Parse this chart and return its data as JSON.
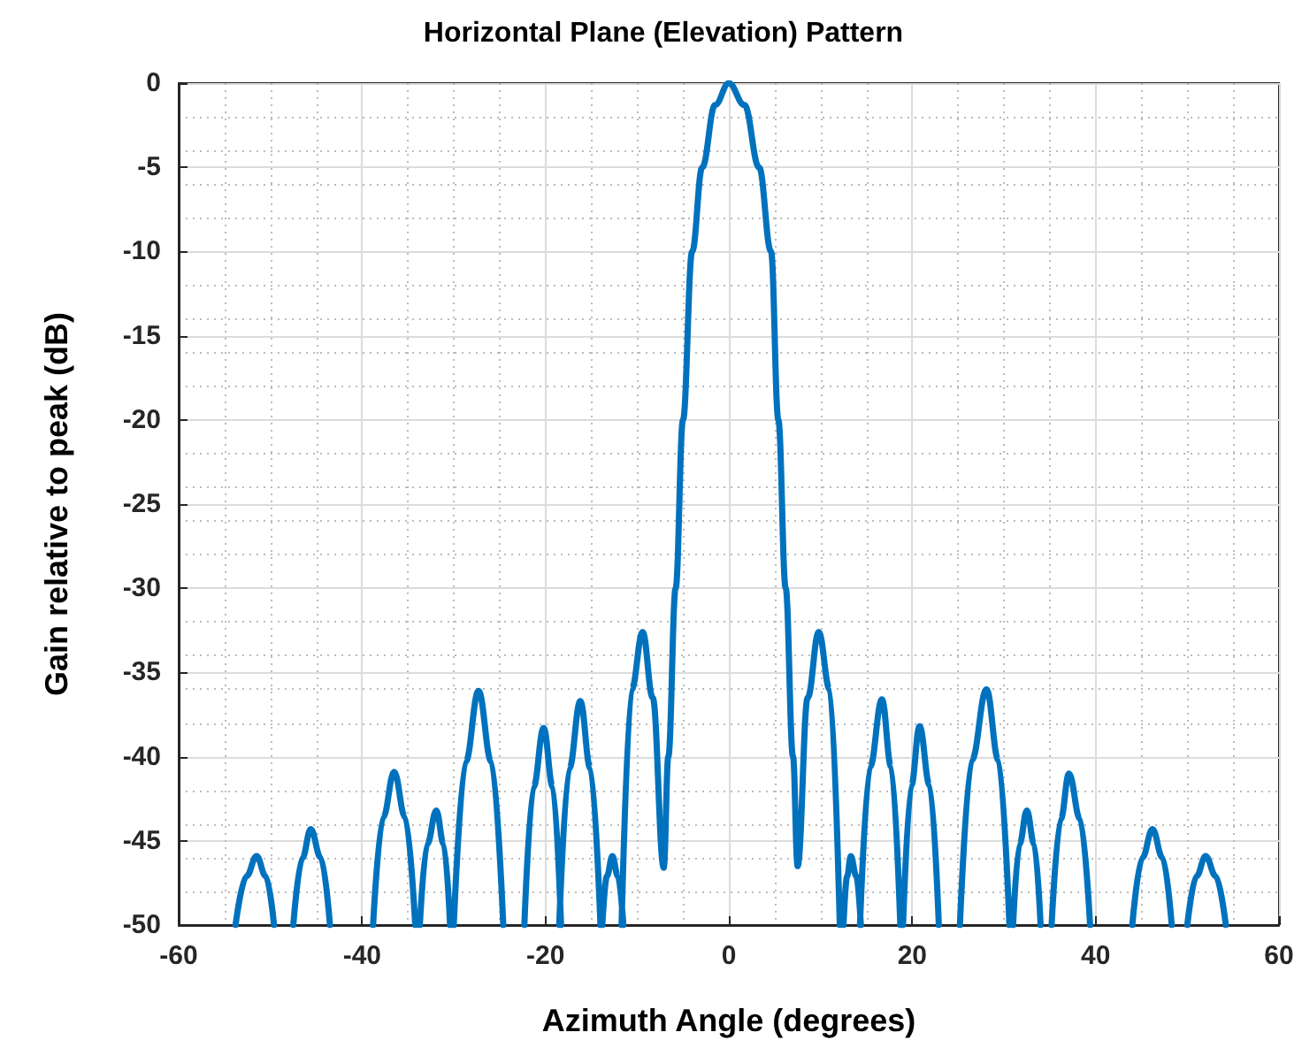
{
  "chart_data": {
    "type": "line",
    "title": "Horizontal Plane (Elevation) Pattern",
    "xlabel": "Azimuth Angle (degrees)",
    "ylabel": "Gain relative to peak (dB)",
    "x": [
      -53.8,
      -52.6,
      -51.5,
      -50.5,
      -49.6,
      -48.5,
      -47.5,
      -46.5,
      -45.6,
      -44.5,
      -43.5,
      -41.0,
      -38.8,
      -37.7,
      -36.5,
      -35.3,
      -34.2,
      -34.0,
      -33.7,
      -32.9,
      -31.9,
      -31.1,
      -30.4,
      -30.2,
      -30.0,
      -28.7,
      -27.3,
      -25.9,
      -24.6,
      -23.5,
      -22.3,
      -21.3,
      -20.2,
      -19.2,
      -18.3,
      -18.4,
      -18.5,
      -17.4,
      -16.2,
      -15.1,
      -14.0,
      -13.9,
      -13.8,
      -13.3,
      -12.7,
      -12.1,
      -11.5,
      -11.6,
      -11.7,
      -10.6,
      -9.4,
      -8.3,
      -7.1,
      -6.6,
      -5.8,
      -5.0,
      -4.0,
      -2.9,
      -1.5,
      0,
      1.7,
      3.3,
      4.6,
      5.4,
      6.2,
      7.0,
      7.5,
      8.6,
      9.8,
      11.0,
      12.1,
      12.3,
      12.5,
      12.9,
      13.3,
      13.9,
      14.4,
      14.35,
      14.3,
      15.4,
      16.7,
      17.7,
      18.7,
      18.85,
      19.0,
      19.9,
      20.8,
      21.9,
      22.9,
      24.0,
      25.2,
      26.5,
      28.1,
      29.4,
      30.6,
      30.8,
      31.0,
      31.7,
      32.5,
      33.3,
      34.0,
      34.6,
      35.2,
      36.2,
      37.1,
      38.3,
      39.4,
      41.7,
      44.0,
      45.1,
      46.2,
      47.3,
      48.3,
      49.1,
      50.0,
      51.0,
      52.0,
      53.1,
      54.2
    ],
    "values": [
      -50,
      -47.1,
      -45.9,
      -47.1,
      -50,
      null,
      -50,
      -46.0,
      -44.3,
      -46.0,
      -50,
      null,
      -50,
      -43.6,
      -40.9,
      -43.6,
      -50,
      null,
      -50,
      -45.2,
      -43.2,
      -45.2,
      -50,
      null,
      -50,
      -40.3,
      -36.1,
      -40.3,
      -50,
      null,
      -50,
      -41.8,
      -38.3,
      -41.8,
      -50,
      null,
      -50,
      -40.7,
      -36.7,
      -40.7,
      -50,
      null,
      -50,
      -47.1,
      -45.9,
      -47.1,
      -50,
      null,
      -50,
      -36,
      -32.6,
      -36.5,
      -46.6,
      -40,
      -30,
      -20,
      -10,
      -5,
      -1.3,
      0,
      -1.3,
      -5,
      -10,
      -20,
      -30,
      -40,
      -46.5,
      -36.5,
      -32.6,
      -36,
      -50,
      null,
      -50,
      -47.1,
      -45.9,
      -47.1,
      -50,
      null,
      -50,
      -40.6,
      -36.6,
      -40.6,
      -50,
      null,
      -50,
      -41.7,
      -38.2,
      -41.7,
      -50,
      null,
      -50,
      -40.2,
      -36.0,
      -40.2,
      -50,
      null,
      -50,
      -45.2,
      -43.2,
      -45.2,
      -50,
      null,
      -50,
      -43.7,
      -41.0,
      -43.7,
      -50,
      null,
      -50,
      -46.0,
      -44.3,
      -46.0,
      -50,
      null,
      -50,
      -47.1,
      -45.9,
      -47.1,
      -50
    ],
    "color": "#0072bd",
    "marker": "none",
    "line_style": "solid",
    "grid": true,
    "xlim": [
      -60,
      60
    ],
    "xticks": [
      -60,
      -40,
      -20,
      0,
      20,
      40,
      60
    ],
    "ylim": [
      -50,
      0
    ],
    "yticks": [
      -50,
      -45,
      -40,
      -35,
      -30,
      -25,
      -20,
      -15,
      -10,
      -5,
      0
    ]
  }
}
